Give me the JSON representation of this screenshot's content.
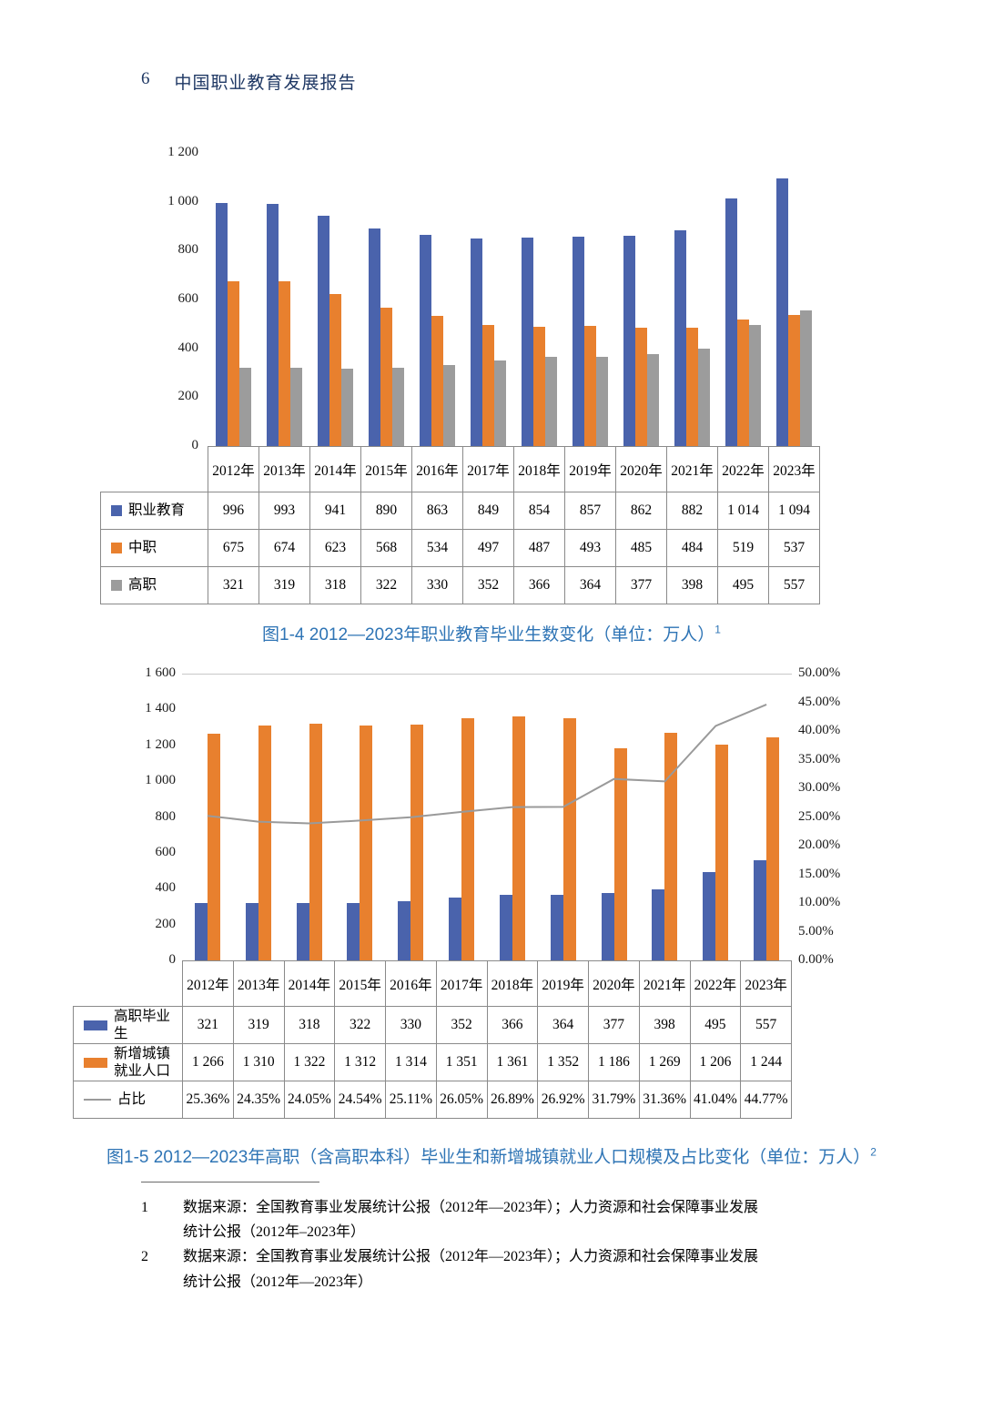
{
  "header": {
    "page_number": "6",
    "title": "中国职业教育发展报告"
  },
  "chart_data": [
    {
      "type": "bar",
      "title": "图1-4 2012—2023年职业教育毕业生数变化（单位：万人）",
      "footnote_ref": "1",
      "categories": [
        "2012年",
        "2013年",
        "2014年",
        "2015年",
        "2016年",
        "2017年",
        "2018年",
        "2019年",
        "2020年",
        "2021年",
        "2022年",
        "2023年"
      ],
      "series": [
        {
          "name": "职业教育",
          "color": "#4a63ac",
          "values": [
            996,
            993,
            941,
            890,
            863,
            849,
            854,
            857,
            862,
            882,
            1014,
            1094
          ]
        },
        {
          "name": "中职",
          "color": "#e8802e",
          "values": [
            675,
            674,
            623,
            568,
            534,
            497,
            487,
            493,
            485,
            484,
            519,
            537
          ]
        },
        {
          "name": "高职",
          "color": "#9c9c9c",
          "values": [
            321,
            319,
            318,
            322,
            330,
            352,
            366,
            364,
            377,
            398,
            495,
            557
          ]
        }
      ],
      "ylim": [
        0,
        1200
      ],
      "ytick_step": 200,
      "yticks": [
        "1 200",
        "1 000",
        "800",
        "600",
        "400",
        "200",
        "0"
      ],
      "grid": false,
      "legend_position": "table-below"
    },
    {
      "type": "bar+line",
      "title": "图1-5 2012—2023年高职（含高职本科）毕业生和新增城镇就业人口规模及占比变化（单位：万人）",
      "footnote_ref": "2",
      "categories": [
        "2012年",
        "2013年",
        "2014年",
        "2015年",
        "2016年",
        "2017年",
        "2018年",
        "2019年",
        "2020年",
        "2021年",
        "2022年",
        "2023年"
      ],
      "series": [
        {
          "name": "高职毕业生",
          "chart": "bar",
          "axis": "left",
          "color": "#4a63ac",
          "values": [
            321,
            319,
            318,
            322,
            330,
            352,
            366,
            364,
            377,
            398,
            495,
            557
          ]
        },
        {
          "name": "新增城镇就业人口",
          "chart": "bar",
          "axis": "left",
          "color": "#e8802e",
          "values": [
            1266,
            1310,
            1322,
            1312,
            1314,
            1351,
            1361,
            1352,
            1186,
            1269,
            1206,
            1244
          ]
        },
        {
          "name": "占比",
          "chart": "line",
          "axis": "right",
          "color": "#9a9a9a",
          "values": [
            25.36,
            24.35,
            24.05,
            24.54,
            25.11,
            26.05,
            26.89,
            26.92,
            31.79,
            31.36,
            41.04,
            44.77
          ]
        }
      ],
      "ylim_left": [
        0,
        1600
      ],
      "yticks_left": [
        "1 600",
        "1 400",
        "1 200",
        "1 000",
        "800",
        "600",
        "400",
        "200",
        "0"
      ],
      "ylim_right": [
        0,
        50
      ],
      "yticks_right": [
        "50.00%",
        "45.00%",
        "40.00%",
        "35.00%",
        "30.00%",
        "25.00%",
        "20.00%",
        "15.00%",
        "10.00%",
        "5.00%",
        "0.00%"
      ],
      "grid": false,
      "legend_position": "table-below"
    }
  ],
  "footnotes": [
    {
      "num": "1",
      "lines": [
        "数据来源：全国教育事业发展统计公报（2012年—2023年）；人力资源和社会保障事业发展",
        "统计公报（2012年–2023年）"
      ]
    },
    {
      "num": "2",
      "lines": [
        "数据来源：全国教育事业发展统计公报（2012年—2023年）；人力资源和社会保障事业发展",
        "统计公报（2012年—2023年）"
      ]
    }
  ]
}
